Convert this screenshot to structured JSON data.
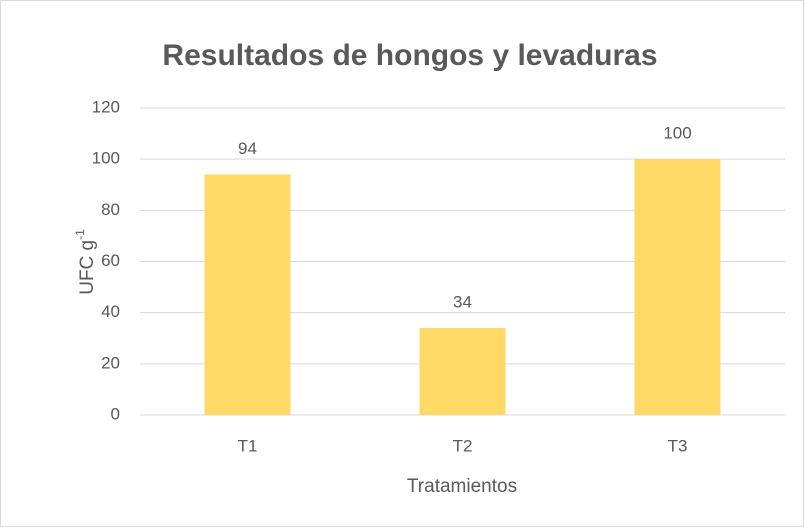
{
  "chart_data": {
    "type": "bar",
    "title": "Resultados de hongos y levaduras",
    "xlabel": "Tratamientos",
    "ylabel": {
      "text": "UFC g",
      "superscript": "-1"
    },
    "categories": [
      "T1",
      "T2",
      "T3"
    ],
    "values": [
      94,
      34,
      100
    ],
    "color": "#FFD966",
    "ylim": [
      0,
      120
    ],
    "yticks": [
      0,
      20,
      40,
      60,
      80,
      100,
      120
    ],
    "grid": true
  }
}
